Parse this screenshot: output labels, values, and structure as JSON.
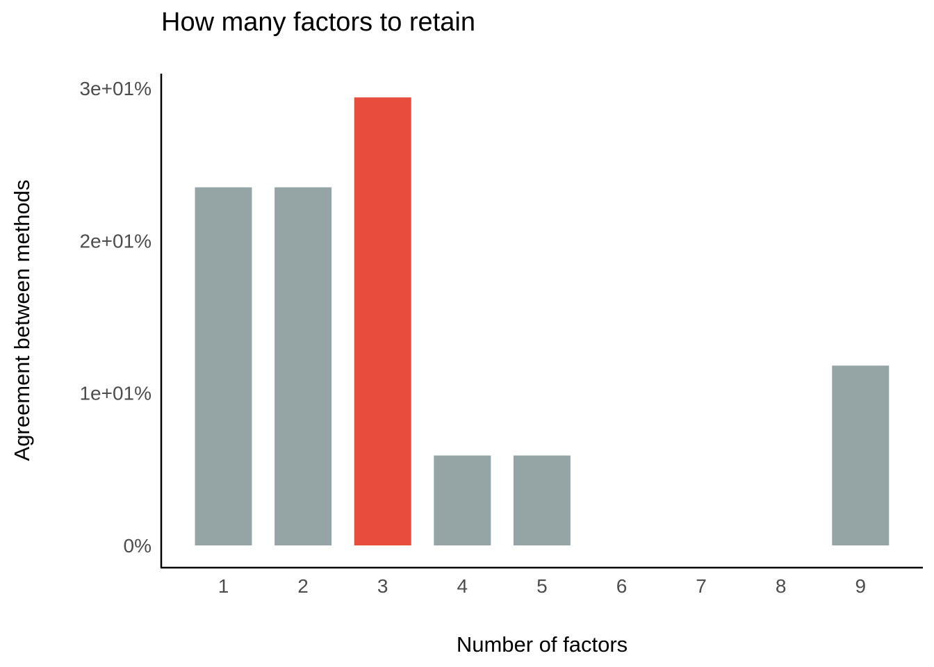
{
  "chart_data": {
    "type": "bar",
    "title": "How many factors to retain",
    "xlabel": "Number of factors",
    "ylabel": "Agreement between methods",
    "categories": [
      "1",
      "2",
      "3",
      "4",
      "5",
      "6",
      "7",
      "8",
      "9"
    ],
    "values": [
      23.5,
      23.5,
      29.4,
      5.9,
      5.9,
      0,
      0,
      0,
      11.8
    ],
    "highlight_category": "3",
    "ylim": [
      0,
      30
    ],
    "yticks": [
      0,
      10,
      20,
      30
    ],
    "ytick_labels": [
      "0%",
      "1e+01%",
      "2e+01%",
      "3e+01%"
    ],
    "grid": false,
    "legend": "none",
    "colors": {
      "bar": "#95a5a6",
      "highlight": "#e74c3c"
    }
  }
}
